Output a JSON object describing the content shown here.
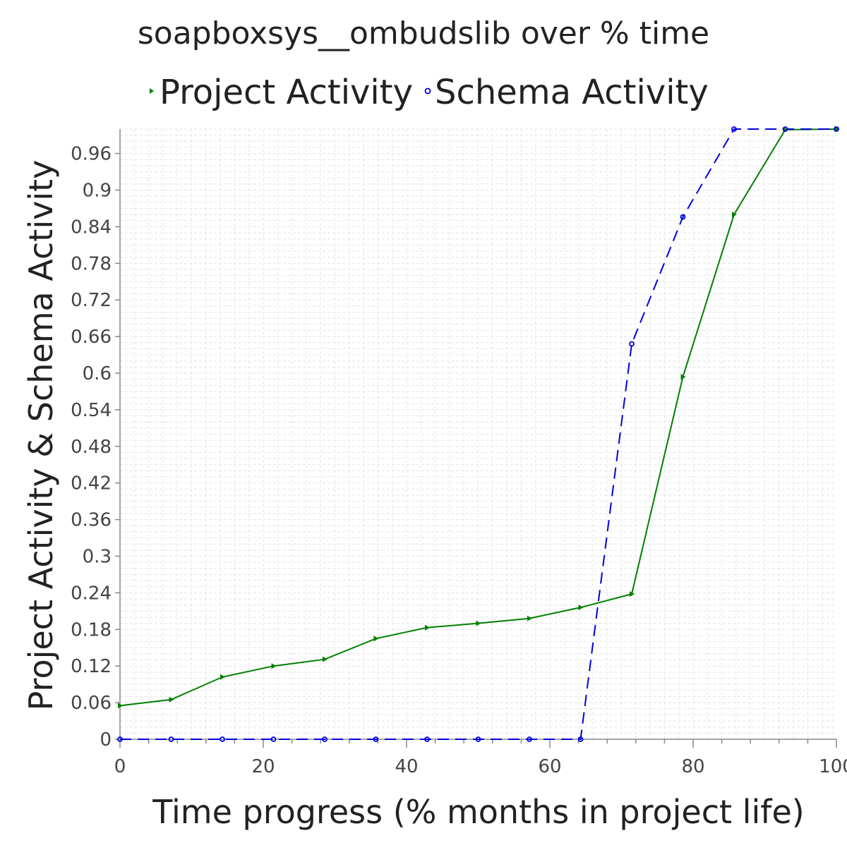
{
  "chart_data": {
    "type": "line",
    "title": "soapboxsys__ombudslib over % time",
    "xlabel": "Time progress (% months in project life)",
    "ylabel": "Project Activity & Schema Activity",
    "xlim": [
      0,
      100
    ],
    "ylim": [
      0,
      1.0
    ],
    "x_ticks": [
      0,
      20,
      40,
      60,
      80,
      100
    ],
    "x_tick_labels": [
      "0",
      "20",
      "40",
      "60",
      "80",
      "100"
    ],
    "y_ticks": [
      0,
      0.06,
      0.12,
      0.18,
      0.24,
      0.3,
      0.36,
      0.42,
      0.48,
      0.54,
      0.6,
      0.66,
      0.72,
      0.78,
      0.84,
      0.9,
      0.96
    ],
    "y_tick_labels": [
      "0",
      "0.06",
      "0.12",
      "0.18",
      "0.24",
      "0.3",
      "0.36",
      "0.42",
      "0.48",
      "0.54",
      "0.6",
      "0.66",
      "0.72",
      "0.78",
      "0.84",
      "0.9",
      "0.96"
    ],
    "grid": true,
    "legend_position": "top",
    "series": [
      {
        "name": "Project Activity",
        "color": "#008000",
        "line_style": "solid",
        "marker": "triangle-right",
        "x": [
          0,
          7.14,
          14.29,
          21.43,
          28.57,
          35.71,
          42.86,
          50.0,
          57.14,
          64.29,
          71.43,
          78.57,
          85.71,
          92.86,
          100.0
        ],
        "values": [
          0.055,
          0.065,
          0.102,
          0.12,
          0.131,
          0.165,
          0.183,
          0.19,
          0.198,
          0.216,
          0.238,
          0.594,
          0.86,
          0.999,
          1.0
        ]
      },
      {
        "name": "Schema Activity",
        "color": "#0000dd",
        "line_style": "dashed",
        "marker": "circle",
        "x": [
          0,
          7.14,
          14.29,
          21.43,
          28.57,
          35.71,
          42.86,
          50.0,
          57.14,
          64.29,
          71.43,
          78.57,
          85.71,
          92.86,
          100.0
        ],
        "values": [
          0,
          0,
          0,
          0,
          0,
          0,
          0,
          0,
          0,
          0,
          0.648,
          0.856,
          1.0,
          1.0,
          1.0
        ]
      }
    ]
  }
}
